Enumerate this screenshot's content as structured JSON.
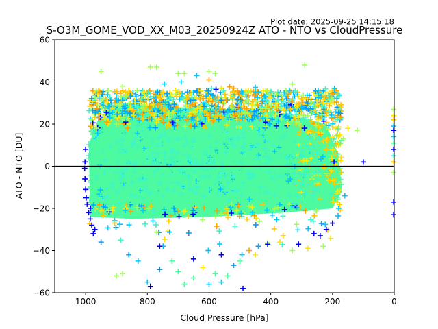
{
  "chart_data": {
    "type": "scatter",
    "title": "S-O3M_GOME_VOD_XX_M03_20250924Z ATO - NTO vs CloudPressure",
    "subtitle": "Plot date: 2025-09-25 14:15:18",
    "xlabel": "Cloud Pressure [hPa]",
    "ylabel": "ATO - NTO [DU]",
    "xlim": [
      1100,
      0
    ],
    "ylim": [
      -60,
      60
    ],
    "x_inverted": true,
    "xticks": [
      1000,
      800,
      600,
      400,
      200,
      0
    ],
    "yticks": [
      60,
      40,
      20,
      0,
      -20,
      -40,
      -60
    ],
    "xtick_labels": [
      "1000",
      "800",
      "600",
      "400",
      "200",
      "0"
    ],
    "ytick_labels": [
      "60",
      "40",
      "20",
      "0",
      "−20",
      "−40",
      "−60"
    ],
    "reference_line": {
      "y": 0,
      "color": "#000000"
    },
    "marker": "+",
    "grid": false,
    "legend": "none",
    "colormap": [
      "#0000ff",
      "#00a0ff",
      "#00c8ff",
      "#3cf5c8",
      "#4dfaa0",
      "#a0ff5a",
      "#e6ff00",
      "#ffe600",
      "#ffc800",
      "#ffa000"
    ],
    "core_region": {
      "description": "dense core of points",
      "x_range": [
        990,
        170
      ],
      "y_range": [
        -25,
        30
      ],
      "dominant_color": "#4dfaa0"
    },
    "series": [
      {
        "name": "outliers-high",
        "points": [
          [
            950,
            45,
            "#a0ff5a"
          ],
          [
            980,
            22,
            "#a0ff5a"
          ],
          [
            965,
            18,
            "#a0ff5a"
          ],
          [
            790,
            47,
            "#a0ff5a"
          ],
          [
            770,
            47,
            "#a0ff5a"
          ],
          [
            700,
            44,
            "#a0ff5a"
          ],
          [
            680,
            44,
            "#a0ff5a"
          ],
          [
            640,
            43,
            "#00c8ff"
          ],
          [
            600,
            45,
            "#a0ff5a"
          ],
          [
            580,
            44,
            "#a0ff5a"
          ],
          [
            600,
            41,
            "#ffa000"
          ],
          [
            690,
            40,
            "#00c8ff"
          ],
          [
            745,
            39,
            "#00c8ff"
          ],
          [
            330,
            39,
            "#a0ff5a"
          ],
          [
            290,
            48,
            "#a0ff5a"
          ],
          [
            880,
            38,
            "#a0ff5a"
          ],
          [
            860,
            36,
            "#ffe600"
          ],
          [
            810,
            35,
            "#ffe600"
          ],
          [
            560,
            37,
            "#ffe600"
          ],
          [
            520,
            37,
            "#ffa000"
          ],
          [
            450,
            35,
            "#00c8ff"
          ],
          [
            420,
            33,
            "#00c8ff"
          ],
          [
            380,
            34,
            "#a0ff5a"
          ],
          [
            340,
            36,
            "#00c8ff"
          ],
          [
            310,
            33,
            "#ffe600"
          ],
          [
            270,
            32,
            "#ffe600"
          ],
          [
            250,
            31,
            "#ffe600"
          ],
          [
            230,
            30,
            "#ffe600"
          ],
          [
            150,
            18,
            "#ffe600"
          ],
          [
            120,
            17,
            "#a0ff5a"
          ],
          [
            165,
            13,
            "#a0ff5a"
          ],
          [
            180,
            10,
            "#ffe600"
          ],
          [
            200,
            8,
            "#ffe600"
          ],
          [
            215,
            12,
            "#ffc800"
          ],
          [
            240,
            15,
            "#ffa000"
          ],
          [
            280,
            24,
            "#a0ff5a"
          ],
          [
            300,
            28,
            "#00c8ff"
          ],
          [
            930,
            30,
            "#ffe600"
          ],
          [
            900,
            32,
            "#00c8ff"
          ],
          [
            840,
            30,
            "#ffe600"
          ]
        ]
      },
      {
        "name": "outliers-low",
        "points": [
          [
            900,
            -52,
            "#a0ff5a"
          ],
          [
            880,
            -51,
            "#a0ff5a"
          ],
          [
            800,
            -55,
            "#00c8ff"
          ],
          [
            790,
            -57,
            "#0000ff"
          ],
          [
            760,
            -49,
            "#00a0ff"
          ],
          [
            720,
            -45,
            "#4dfaa0"
          ],
          [
            700,
            -50,
            "#4dfaa0"
          ],
          [
            680,
            -56,
            "#4dfaa0"
          ],
          [
            650,
            -53,
            "#4dfaa0"
          ],
          [
            620,
            -48,
            "#ffe600"
          ],
          [
            600,
            -56,
            "#00c8ff"
          ],
          [
            580,
            -51,
            "#4dfaa0"
          ],
          [
            560,
            -55,
            "#00c8ff"
          ],
          [
            540,
            -52,
            "#4dfaa0"
          ],
          [
            490,
            -58,
            "#0000ff"
          ],
          [
            500,
            -45,
            "#4dfaa0"
          ],
          [
            470,
            -40,
            "#ffa000"
          ],
          [
            450,
            -42,
            "#ffe600"
          ],
          [
            410,
            -37,
            "#0000ff"
          ],
          [
            370,
            -36,
            "#ffe600"
          ],
          [
            330,
            -40,
            "#a0ff5a"
          ],
          [
            310,
            -37,
            "#0000ff"
          ],
          [
            280,
            -39,
            "#ffe600"
          ],
          [
            240,
            -33,
            "#0000ff"
          ],
          [
            220,
            -30,
            "#0000ff"
          ],
          [
            200,
            -27,
            "#0000ff"
          ],
          [
            180,
            -20,
            "#00c8ff"
          ],
          [
            160,
            -14,
            "#00c8ff"
          ],
          [
            950,
            -36,
            "#00a0ff"
          ],
          [
            970,
            -30,
            "#0000ff"
          ],
          [
            860,
            -42,
            "#00a0ff"
          ],
          [
            830,
            -45,
            "#00c8ff"
          ],
          [
            760,
            -38,
            "#0000ff"
          ],
          [
            650,
            -44,
            "#0000ff"
          ],
          [
            560,
            -42,
            "#0000ff"
          ],
          [
            520,
            -47,
            "#00a0ff"
          ],
          [
            440,
            -38,
            "#00a0ff"
          ],
          [
            360,
            -33,
            "#ffc800"
          ],
          [
            260,
            -32,
            "#0000ff"
          ],
          [
            230,
            -38,
            "#a0ff5a"
          ]
        ]
      },
      {
        "name": "edge-low-pressure",
        "points": [
          [
            1000,
            8,
            "#0000ff"
          ],
          [
            1002,
            2,
            "#0000ff"
          ],
          [
            1003,
            -1,
            "#0000ff"
          ],
          [
            1002,
            -6,
            "#0000ff"
          ],
          [
            1000,
            -11,
            "#0000ff"
          ],
          [
            998,
            -15,
            "#0000ff"
          ],
          [
            995,
            -18,
            "#0000ff"
          ],
          [
            990,
            -22,
            "#0000ff"
          ],
          [
            985,
            -25,
            "#0000ff"
          ],
          [
            980,
            -28,
            "#0000ff"
          ],
          [
            975,
            -32,
            "#0000ff"
          ],
          [
            195,
            2,
            "#0000ff"
          ],
          [
            100,
            2,
            "#0000ff"
          ]
        ]
      },
      {
        "name": "zero-pressure-column",
        "points": [
          [
            2,
            27,
            "#a0ff5a"
          ],
          [
            2,
            24,
            "#ffe600"
          ],
          [
            2,
            22,
            "#ffc800"
          ],
          [
            2,
            19,
            "#00c8ff"
          ],
          [
            2,
            17,
            "#0000ff"
          ],
          [
            2,
            14,
            "#00c8ff"
          ],
          [
            2,
            11,
            "#4dfaa0"
          ],
          [
            2,
            8,
            "#0000ff"
          ],
          [
            2,
            5,
            "#3cf5c8"
          ],
          [
            2,
            2,
            "#ffc800"
          ],
          [
            2,
            -3,
            "#a0ff5a"
          ],
          [
            2,
            -17,
            "#0000ff"
          ],
          [
            2,
            -23,
            "#0000ff"
          ]
        ]
      }
    ]
  }
}
